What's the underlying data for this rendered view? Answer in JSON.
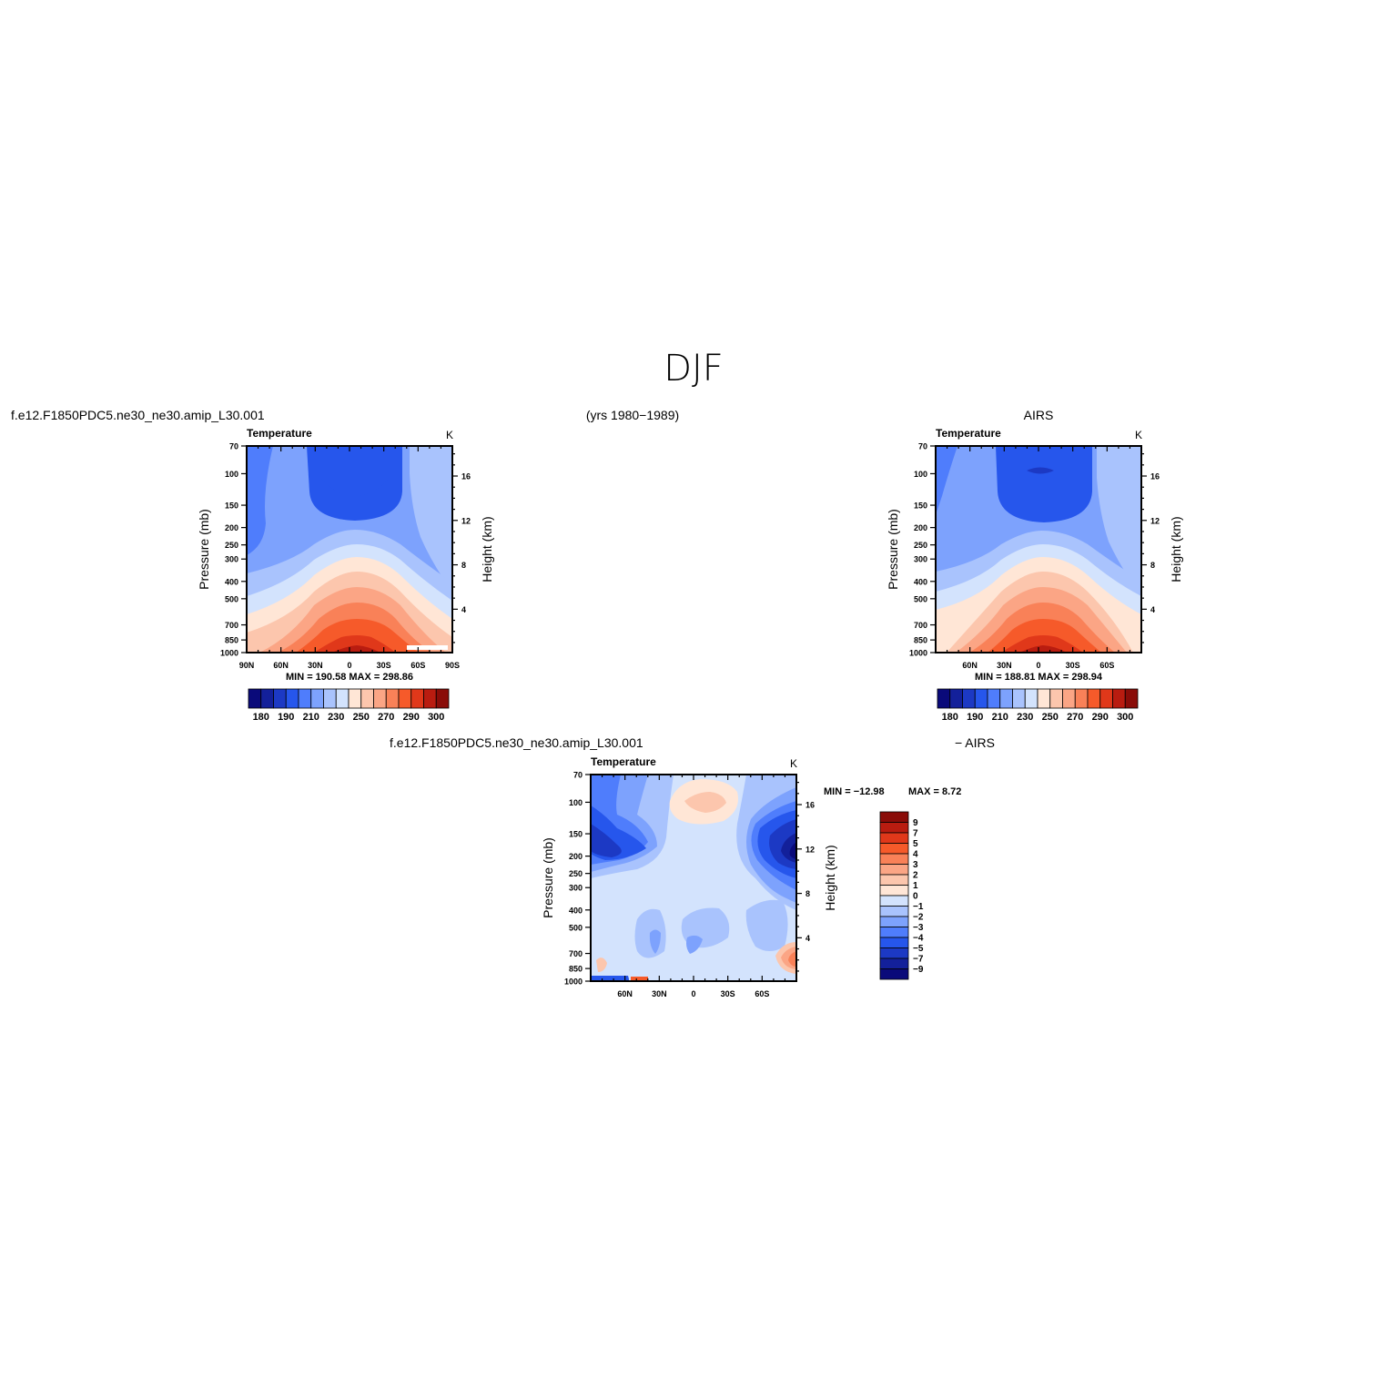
{
  "page": {
    "season_title": "DJF",
    "top_left_label": "f.e12.F1850PDC5.ne30_ne30.amip_L30.001",
    "years_label": "(yrs 1980−1989)",
    "top_right_label": "AIRS",
    "diff_label_left": "f.e12.F1850PDC5.ne30_ne30.amip_L30.001",
    "diff_label_right": "− AIRS"
  },
  "colors": {
    "abs_palette": [
      "#0a0a7a",
      "#13209a",
      "#1c39c4",
      "#2656ec",
      "#4f7dfc",
      "#7da2fd",
      "#a9c3fd",
      "#d3e3fd",
      "#ffe6d6",
      "#fcc6ad",
      "#fba585",
      "#f98158",
      "#f65a2a",
      "#e0381a",
      "#b91c10",
      "#8a0c08"
    ],
    "diff_palette": [
      "#8a0c08",
      "#b91c10",
      "#e0381a",
      "#f65a2a",
      "#f98158",
      "#fba585",
      "#fcc6ad",
      "#ffe6d6",
      "#d3e3fd",
      "#a9c3fd",
      "#7da2fd",
      "#4f7dfc",
      "#2656ec",
      "#1c39c4",
      "#13209a",
      "#0a0a7a"
    ]
  },
  "chart_data": [
    {
      "type": "heatmap",
      "name": "model",
      "title": "Temperature",
      "units": "K",
      "ylabel": "Pressure (mb)",
      "ylabel_right": "Height (km)",
      "x_ticks": [
        "90N",
        "60N",
        "30N",
        "0",
        "30S",
        "60S",
        "90S"
      ],
      "y_ticks": [
        "70",
        "100",
        "150",
        "200",
        "250",
        "300",
        "400",
        "500",
        "700",
        "850",
        "1000"
      ],
      "height_ticks": [
        "4",
        "8",
        "12",
        "16"
      ],
      "stats": "MIN =  190.58   MAX =  298.86",
      "colorbar_labels": [
        "180",
        "190",
        "210",
        "230",
        "250",
        "270",
        "290",
        "300"
      ],
      "min": 190.58,
      "max": 298.86
    },
    {
      "type": "heatmap",
      "name": "obs",
      "title": "Temperature",
      "units": "K",
      "ylabel": "Pressure (mb)",
      "ylabel_right": "Height (km)",
      "x_ticks": [
        "60N",
        "30N",
        "0",
        "30S",
        "60S"
      ],
      "y_ticks": [
        "70",
        "100",
        "150",
        "200",
        "250",
        "300",
        "400",
        "500",
        "700",
        "850",
        "1000"
      ],
      "height_ticks": [
        "4",
        "8",
        "12",
        "16"
      ],
      "stats": "MIN =  188.81   MAX =  298.94",
      "colorbar_labels": [
        "180",
        "190",
        "210",
        "230",
        "250",
        "270",
        "290",
        "300"
      ],
      "min": 188.81,
      "max": 298.94
    },
    {
      "type": "heatmap",
      "name": "difference",
      "title": "Temperature",
      "units": "K",
      "ylabel": "Pressure (mb)",
      "ylabel_right": "Height (km)",
      "x_ticks": [
        "60N",
        "30N",
        "0",
        "30S",
        "60S"
      ],
      "y_ticks": [
        "70",
        "100",
        "150",
        "200",
        "250",
        "300",
        "400",
        "500",
        "700",
        "850",
        "1000"
      ],
      "height_ticks": [
        "4",
        "8",
        "12",
        "16"
      ],
      "stats_min": "MIN = −12.98",
      "stats_max": "MAX =    8.72",
      "colorbar_labels": [
        "9",
        "7",
        "5",
        "4",
        "3",
        "2",
        "1",
        "0",
        "−1",
        "−2",
        "−3",
        "−4",
        "−5",
        "−7",
        "−9"
      ],
      "min": -12.98,
      "max": 8.72
    }
  ]
}
